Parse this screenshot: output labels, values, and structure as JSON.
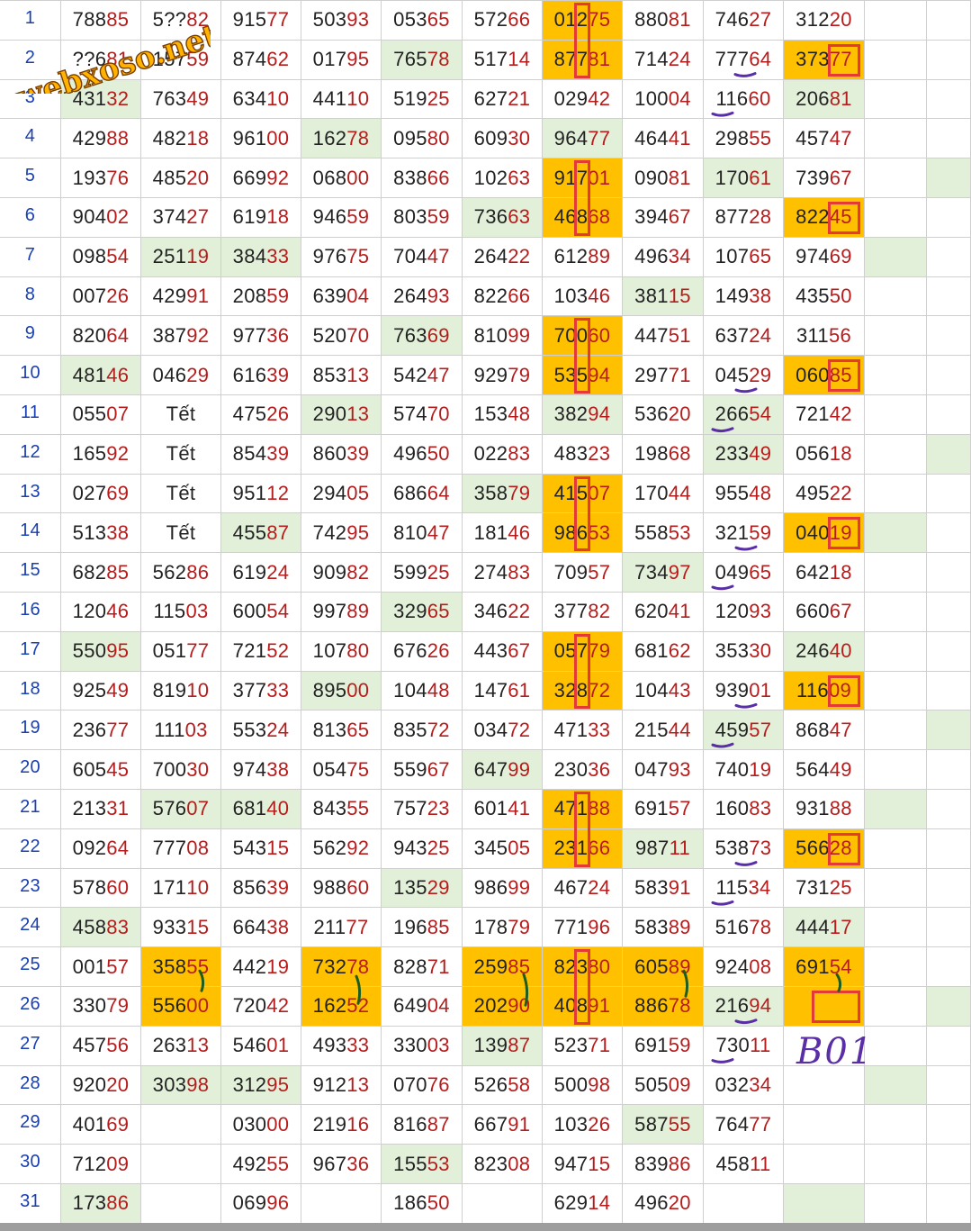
{
  "sheet": {
    "watermark_text": "webxoso.net",
    "annotation_text": "B01",
    "colors": {
      "green": "#e2f0d9",
      "orange": "#ffc000",
      "digit_red": "#b71c1c",
      "row_number_blue": "#1a3fb0",
      "box_red": "#e53935",
      "underline_purple": "#5a2ea6",
      "tick_green": "#1b5e20"
    },
    "rows": [
      {
        "n": "1",
        "cells": [
          "78885",
          "5??82",
          "91577",
          "50393",
          "05365",
          "57266",
          "01275",
          "88081",
          "74627",
          "31220"
        ]
      },
      {
        "n": "2",
        "cells": [
          "??681",
          "15759",
          "87462",
          "01795",
          "76578",
          "51714",
          "87781",
          "71424",
          "77764",
          "37377"
        ]
      },
      {
        "n": "3",
        "cells": [
          "43132",
          "76349",
          "63410",
          "44110",
          "51925",
          "62721",
          "02942",
          "10004",
          "11660",
          "20681"
        ]
      },
      {
        "n": "4",
        "cells": [
          "42988",
          "48218",
          "96100",
          "16278",
          "09580",
          "60930",
          "96477",
          "46441",
          "29855",
          "45747"
        ]
      },
      {
        "n": "5",
        "cells": [
          "19376",
          "48520",
          "66992",
          "06800",
          "83866",
          "10263",
          "91701",
          "09081",
          "17061",
          "73967"
        ]
      },
      {
        "n": "6",
        "cells": [
          "90402",
          "37427",
          "61918",
          "94659",
          "80359",
          "73663",
          "46868",
          "39467",
          "87728",
          "82245"
        ]
      },
      {
        "n": "7",
        "cells": [
          "09854",
          "25119",
          "38433",
          "97675",
          "70447",
          "26422",
          "61289",
          "49634",
          "10765",
          "97469"
        ]
      },
      {
        "n": "8",
        "cells": [
          "00726",
          "42991",
          "20859",
          "63904",
          "26493",
          "82266",
          "10346",
          "38115",
          "14938",
          "43550"
        ]
      },
      {
        "n": "9",
        "cells": [
          "82064",
          "38792",
          "97736",
          "52070",
          "76369",
          "81099",
          "70060",
          "44751",
          "63724",
          "31156"
        ]
      },
      {
        "n": "10",
        "cells": [
          "48146",
          "04629",
          "61639",
          "85313",
          "54247",
          "92979",
          "53594",
          "29771",
          "04529",
          "06085"
        ]
      },
      {
        "n": "11",
        "cells": [
          "05507",
          "Tết",
          "47526",
          "29013",
          "57470",
          "15348",
          "38294",
          "53620",
          "26654",
          "72142"
        ]
      },
      {
        "n": "12",
        "cells": [
          "16592",
          "Tết",
          "85439",
          "86039",
          "49650",
          "02283",
          "48323",
          "19868",
          "23349",
          "05618"
        ]
      },
      {
        "n": "13",
        "cells": [
          "02769",
          "Tết",
          "95112",
          "29405",
          "68664",
          "35879",
          "41507",
          "17044",
          "95548",
          "49522"
        ]
      },
      {
        "n": "14",
        "cells": [
          "51338",
          "Tết",
          "45587",
          "74295",
          "81047",
          "18146",
          "98653",
          "55853",
          "32159",
          "04019"
        ]
      },
      {
        "n": "15",
        "cells": [
          "68285",
          "56286",
          "61924",
          "90982",
          "59925",
          "27483",
          "70957",
          "73497",
          "04965",
          "64218"
        ]
      },
      {
        "n": "16",
        "cells": [
          "12046",
          "11503",
          "60054",
          "99789",
          "32965",
          "34622",
          "37782",
          "62041",
          "12093",
          "66067"
        ]
      },
      {
        "n": "17",
        "cells": [
          "55095",
          "05177",
          "72152",
          "10780",
          "67626",
          "44367",
          "05779",
          "68162",
          "35330",
          "24640"
        ]
      },
      {
        "n": "18",
        "cells": [
          "92549",
          "81910",
          "37733",
          "89500",
          "10448",
          "14761",
          "32872",
          "10443",
          "93901",
          "11609"
        ]
      },
      {
        "n": "19",
        "cells": [
          "23677",
          "11103",
          "55324",
          "81365",
          "83572",
          "03472",
          "47133",
          "21544",
          "45957",
          "86847"
        ]
      },
      {
        "n": "20",
        "cells": [
          "60545",
          "70030",
          "97438",
          "05475",
          "55967",
          "64799",
          "23036",
          "04793",
          "74019",
          "56449"
        ]
      },
      {
        "n": "21",
        "cells": [
          "21331",
          "57607",
          "68140",
          "84355",
          "75723",
          "60141",
          "47188",
          "69157",
          "16083",
          "93188"
        ]
      },
      {
        "n": "22",
        "cells": [
          "09264",
          "77708",
          "54315",
          "56292",
          "94325",
          "34505",
          "23166",
          "98711",
          "53873",
          "56628"
        ]
      },
      {
        "n": "23",
        "cells": [
          "57860",
          "17110",
          "85639",
          "98860",
          "13529",
          "98699",
          "46724",
          "58391",
          "11534",
          "73125"
        ]
      },
      {
        "n": "24",
        "cells": [
          "45883",
          "93315",
          "66438",
          "21177",
          "19685",
          "17879",
          "77196",
          "58389",
          "51678",
          "44417"
        ]
      },
      {
        "n": "25",
        "cells": [
          "00157",
          "35855",
          "44219",
          "73278",
          "82871",
          "25985",
          "82380",
          "60589",
          "92408",
          "69154"
        ]
      },
      {
        "n": "26",
        "cells": [
          "33079",
          "55600",
          "72042",
          "16252",
          "64904",
          "20290",
          "40891",
          "88678",
          "21694",
          ""
        ]
      },
      {
        "n": "27",
        "cells": [
          "45756",
          "26313",
          "54601",
          "49333",
          "33003",
          "13987",
          "52371",
          "69159",
          "73011",
          ""
        ]
      },
      {
        "n": "28",
        "cells": [
          "92020",
          "30398",
          "31295",
          "91213",
          "07076",
          "52658",
          "50098",
          "50509",
          "03234",
          ""
        ]
      },
      {
        "n": "29",
        "cells": [
          "40169",
          "",
          "03000",
          "21916",
          "81687",
          "66791",
          "10326",
          "58755",
          "76477",
          ""
        ]
      },
      {
        "n": "30",
        "cells": [
          "71209",
          "",
          "49255",
          "96736",
          "15553",
          "82308",
          "94715",
          "83986",
          "45811",
          ""
        ]
      },
      {
        "n": "31",
        "cells": [
          "17386",
          "",
          "06996",
          "",
          "18650",
          "",
          "62914",
          "49620",
          "",
          ""
        ]
      }
    ]
  }
}
